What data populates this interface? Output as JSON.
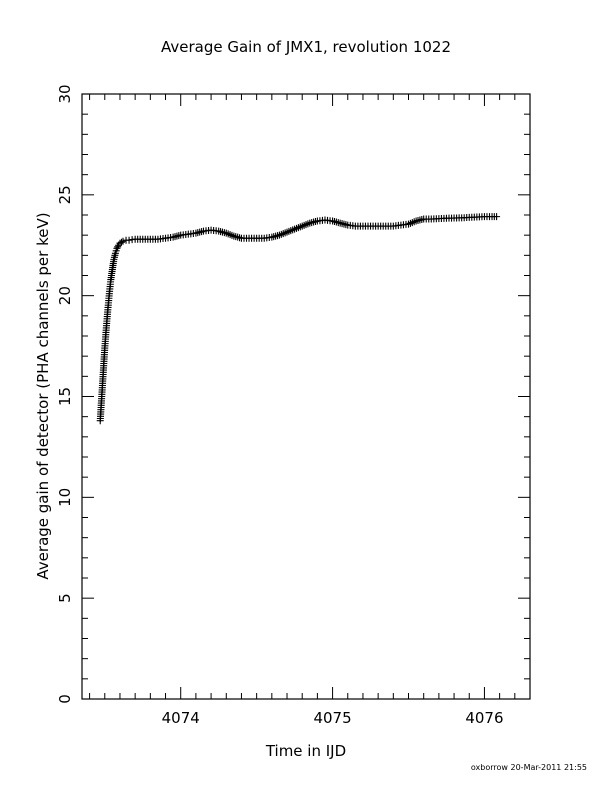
{
  "chart_data": {
    "type": "scatter",
    "marker": "plus",
    "title": "Average Gain of JMX1, revolution 1022",
    "xlabel": "Time in IJD",
    "ylabel": "Average gain of detector (PHA channels per keV)",
    "xlim": [
      4073.35,
      4076.3
    ],
    "ylim": [
      0,
      30
    ],
    "x_ticks": [
      "4074",
      "4075",
      "4076"
    ],
    "y_ticks": [
      "0",
      "5",
      "10",
      "15",
      "20",
      "25",
      "30"
    ],
    "grid": false,
    "series": [
      {
        "x": [
          4073.47,
          4073.48,
          4073.49,
          4073.5,
          4073.51,
          4073.52,
          4073.53,
          4073.54,
          4073.55,
          4073.56,
          4073.57,
          4073.58,
          4073.59,
          4073.6,
          4073.62,
          4073.64,
          4073.66,
          4073.68,
          4073.7,
          4073.75,
          4073.8,
          4073.85,
          4073.9,
          4073.95,
          4074.0,
          4074.05,
          4074.1,
          4074.15,
          4074.2,
          4074.25,
          4074.3,
          4074.35,
          4074.4,
          4074.45,
          4074.5,
          4074.55,
          4074.6,
          4074.65,
          4074.7,
          4074.75,
          4074.8,
          4074.85,
          4074.9,
          4074.95,
          4075.0,
          4075.05,
          4075.1,
          4075.15,
          4075.2,
          4075.25,
          4075.3,
          4075.35,
          4075.4,
          4075.45,
          4075.5,
          4075.55,
          4075.6,
          4075.65,
          4075.7,
          4075.75,
          4075.8,
          4075.85,
          4075.9,
          4075.95,
          4076.0,
          4076.05,
          4076.08
        ],
        "y": [
          13.8,
          15.0,
          16.2,
          17.4,
          18.4,
          19.3,
          20.1,
          20.8,
          21.3,
          21.8,
          22.1,
          22.35,
          22.5,
          22.6,
          22.7,
          22.75,
          22.75,
          22.78,
          22.8,
          22.8,
          22.8,
          22.8,
          22.85,
          22.9,
          23.0,
          23.05,
          23.1,
          23.2,
          23.25,
          23.2,
          23.1,
          22.95,
          22.85,
          22.85,
          22.85,
          22.85,
          22.9,
          23.0,
          23.15,
          23.3,
          23.45,
          23.6,
          23.7,
          23.75,
          23.7,
          23.6,
          23.5,
          23.45,
          23.45,
          23.45,
          23.45,
          23.45,
          23.45,
          23.5,
          23.55,
          23.7,
          23.8,
          23.8,
          23.82,
          23.84,
          23.85,
          23.86,
          23.88,
          23.9,
          23.92,
          23.92,
          23.92
        ]
      }
    ]
  },
  "footer": "oxborrow 20-Mar-2011 21:55"
}
